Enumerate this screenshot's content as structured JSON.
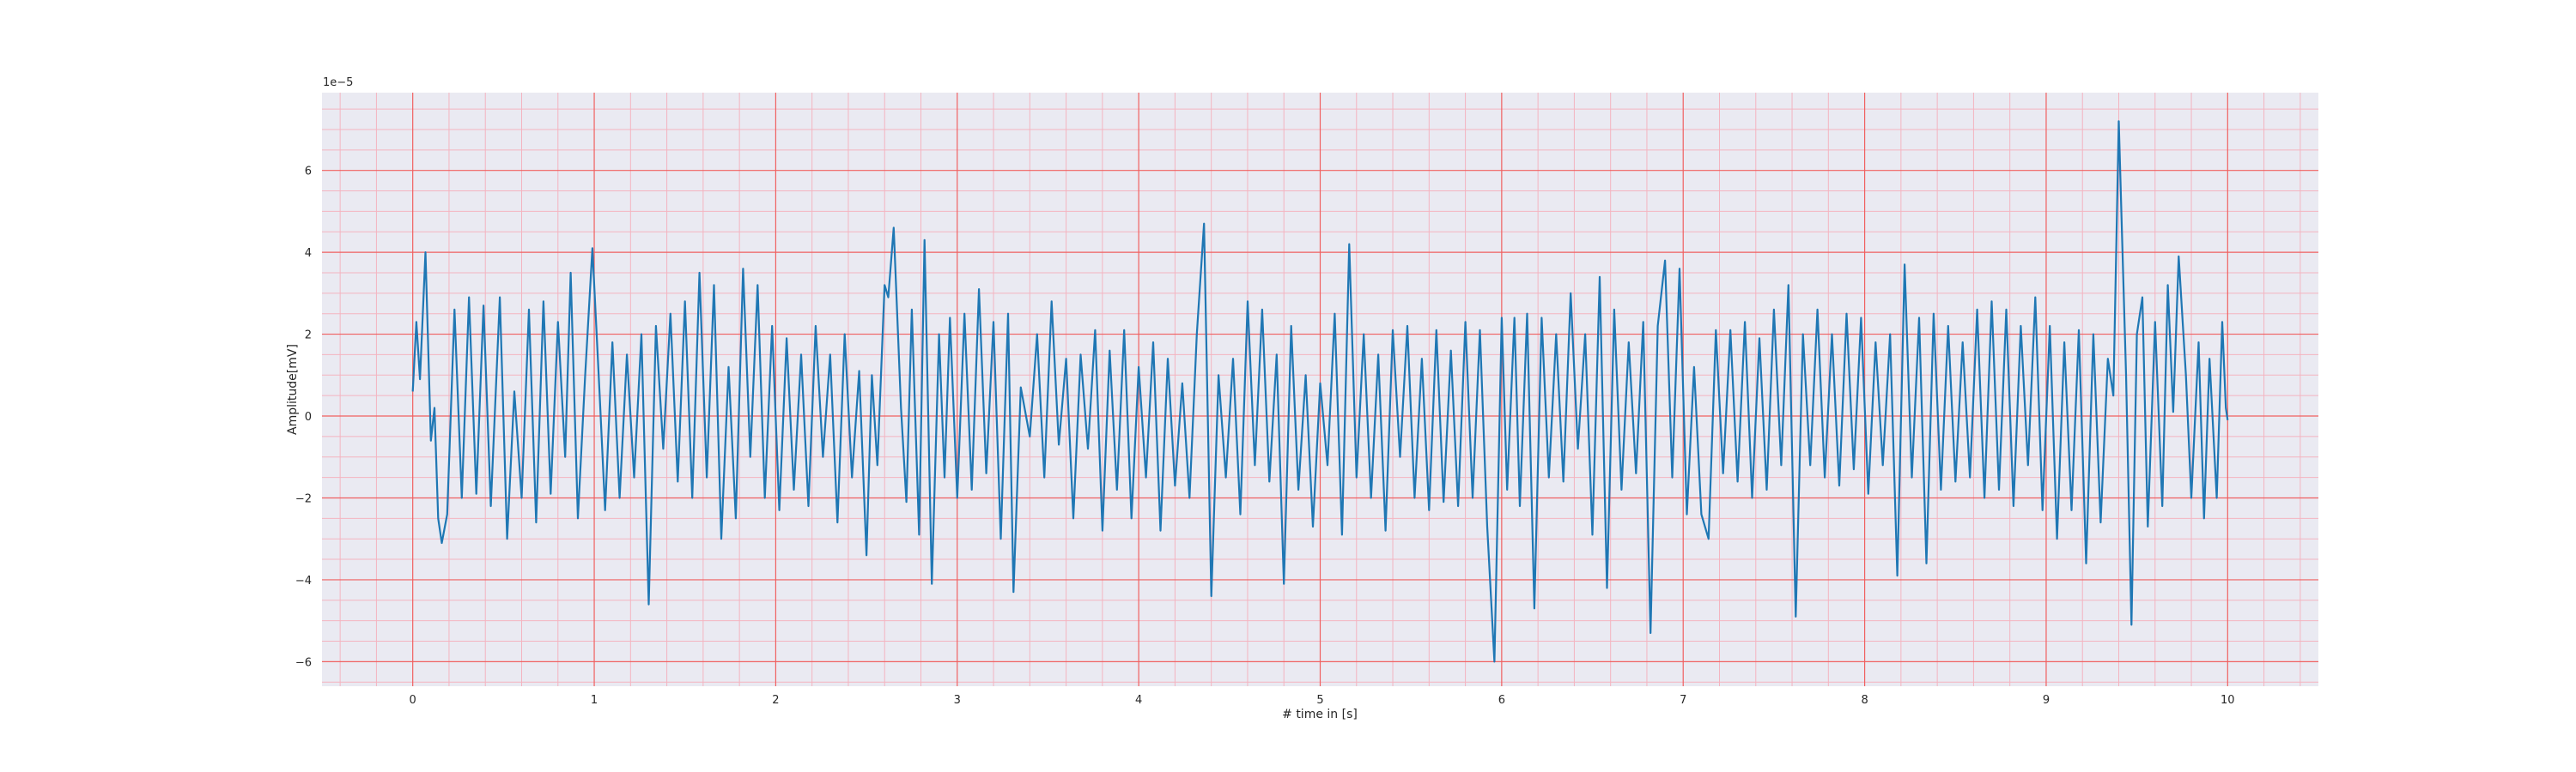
{
  "chart_data": {
    "type": "line",
    "title": "",
    "xlabel": "# time in [s]",
    "ylabel": "Amplitude[mV]",
    "y_offset_text": "1e−5",
    "xlim": [
      -0.5,
      10.5
    ],
    "ylim": [
      -6.6,
      7.9
    ],
    "x_ticks": [
      0,
      1,
      2,
      3,
      4,
      5,
      6,
      7,
      8,
      9,
      10
    ],
    "x_tick_labels": [
      "0",
      "1",
      "2",
      "3",
      "4",
      "5",
      "6",
      "7",
      "8",
      "9",
      "10"
    ],
    "y_ticks": [
      -6,
      -4,
      -2,
      0,
      2,
      4,
      6
    ],
    "y_tick_labels": [
      "−6",
      "−4",
      "−2",
      "0",
      "2",
      "4",
      "6"
    ],
    "grid": {
      "major": true,
      "minor": true
    },
    "colors": {
      "plot_background": "#eaeaf2",
      "major_grid": "#f06060",
      "minor_grid": "#f4b4c0",
      "line": "#1f77b4",
      "text": "#262626"
    },
    "series": [
      {
        "values_scale": "1e-5",
        "points": [
          [
            0.0,
            0.6
          ],
          [
            0.02,
            2.3
          ],
          [
            0.04,
            0.9
          ],
          [
            0.07,
            4.0
          ],
          [
            0.1,
            -0.6
          ],
          [
            0.12,
            0.2
          ],
          [
            0.14,
            -2.5
          ],
          [
            0.16,
            -3.1
          ],
          [
            0.19,
            -2.4
          ],
          [
            0.23,
            2.6
          ],
          [
            0.27,
            -2.0
          ],
          [
            0.31,
            2.9
          ],
          [
            0.35,
            -1.9
          ],
          [
            0.39,
            2.7
          ],
          [
            0.43,
            -2.2
          ],
          [
            0.48,
            2.9
          ],
          [
            0.52,
            -3.0
          ],
          [
            0.56,
            0.6
          ],
          [
            0.6,
            -2.0
          ],
          [
            0.64,
            2.6
          ],
          [
            0.68,
            -2.6
          ],
          [
            0.72,
            2.8
          ],
          [
            0.76,
            -1.9
          ],
          [
            0.8,
            2.3
          ],
          [
            0.84,
            -1.0
          ],
          [
            0.87,
            3.5
          ],
          [
            0.91,
            -2.5
          ],
          [
            0.95,
            1.0
          ],
          [
            0.99,
            4.1
          ],
          [
            1.03,
            0.5
          ],
          [
            1.06,
            -2.3
          ],
          [
            1.1,
            1.8
          ],
          [
            1.14,
            -2.0
          ],
          [
            1.18,
            1.5
          ],
          [
            1.22,
            -1.5
          ],
          [
            1.26,
            2.0
          ],
          [
            1.3,
            -4.6
          ],
          [
            1.34,
            2.2
          ],
          [
            1.38,
            -0.8
          ],
          [
            1.42,
            2.5
          ],
          [
            1.46,
            -1.6
          ],
          [
            1.5,
            2.8
          ],
          [
            1.54,
            -2.0
          ],
          [
            1.58,
            3.5
          ],
          [
            1.62,
            -1.5
          ],
          [
            1.66,
            3.2
          ],
          [
            1.7,
            -3.0
          ],
          [
            1.74,
            1.2
          ],
          [
            1.78,
            -2.5
          ],
          [
            1.82,
            3.6
          ],
          [
            1.86,
            -1.0
          ],
          [
            1.9,
            3.2
          ],
          [
            1.94,
            -2.0
          ],
          [
            1.98,
            2.2
          ],
          [
            2.02,
            -2.3
          ],
          [
            2.06,
            1.9
          ],
          [
            2.1,
            -1.8
          ],
          [
            2.14,
            1.5
          ],
          [
            2.18,
            -2.2
          ],
          [
            2.22,
            2.2
          ],
          [
            2.26,
            -1.0
          ],
          [
            2.3,
            1.5
          ],
          [
            2.34,
            -2.6
          ],
          [
            2.38,
            2.0
          ],
          [
            2.42,
            -1.5
          ],
          [
            2.46,
            1.1
          ],
          [
            2.5,
            -3.4
          ],
          [
            2.53,
            1.0
          ],
          [
            2.56,
            -1.2
          ],
          [
            2.6,
            3.2
          ],
          [
            2.62,
            2.9
          ],
          [
            2.65,
            4.6
          ],
          [
            2.69,
            0.2
          ],
          [
            2.72,
            -2.1
          ],
          [
            2.75,
            2.6
          ],
          [
            2.79,
            -2.9
          ],
          [
            2.82,
            4.3
          ],
          [
            2.86,
            -4.1
          ],
          [
            2.9,
            2.0
          ],
          [
            2.93,
            -1.5
          ],
          [
            2.96,
            2.4
          ],
          [
            3.0,
            -2.0
          ],
          [
            3.04,
            2.5
          ],
          [
            3.08,
            -1.8
          ],
          [
            3.12,
            3.1
          ],
          [
            3.16,
            -1.4
          ],
          [
            3.2,
            2.3
          ],
          [
            3.24,
            -3.0
          ],
          [
            3.28,
            2.5
          ],
          [
            3.31,
            -4.3
          ],
          [
            3.35,
            0.7
          ],
          [
            3.4,
            -0.5
          ],
          [
            3.44,
            2.0
          ],
          [
            3.48,
            -1.5
          ],
          [
            3.52,
            2.8
          ],
          [
            3.56,
            -0.7
          ],
          [
            3.6,
            1.4
          ],
          [
            3.64,
            -2.5
          ],
          [
            3.68,
            1.5
          ],
          [
            3.72,
            -0.8
          ],
          [
            3.76,
            2.1
          ],
          [
            3.8,
            -2.8
          ],
          [
            3.84,
            1.6
          ],
          [
            3.88,
            -1.8
          ],
          [
            3.92,
            2.1
          ],
          [
            3.96,
            -2.5
          ],
          [
            4.0,
            1.2
          ],
          [
            4.04,
            -1.5
          ],
          [
            4.08,
            1.8
          ],
          [
            4.12,
            -2.8
          ],
          [
            4.16,
            1.4
          ],
          [
            4.2,
            -1.7
          ],
          [
            4.24,
            0.8
          ],
          [
            4.28,
            -2.0
          ],
          [
            4.32,
            2.0
          ],
          [
            4.36,
            4.7
          ],
          [
            4.4,
            -4.4
          ],
          [
            4.44,
            1.0
          ],
          [
            4.48,
            -1.5
          ],
          [
            4.52,
            1.4
          ],
          [
            4.56,
            -2.4
          ],
          [
            4.6,
            2.8
          ],
          [
            4.64,
            -1.2
          ],
          [
            4.68,
            2.6
          ],
          [
            4.72,
            -1.6
          ],
          [
            4.76,
            1.5
          ],
          [
            4.8,
            -4.1
          ],
          [
            4.84,
            2.2
          ],
          [
            4.88,
            -1.8
          ],
          [
            4.92,
            1.0
          ],
          [
            4.96,
            -2.7
          ],
          [
            5.0,
            0.8
          ],
          [
            5.04,
            -1.2
          ],
          [
            5.08,
            2.5
          ],
          [
            5.12,
            -2.9
          ],
          [
            5.16,
            4.2
          ],
          [
            5.2,
            -1.5
          ],
          [
            5.24,
            2.0
          ],
          [
            5.28,
            -2.0
          ],
          [
            5.32,
            1.5
          ],
          [
            5.36,
            -2.8
          ],
          [
            5.4,
            2.1
          ],
          [
            5.44,
            -1.0
          ],
          [
            5.48,
            2.2
          ],
          [
            5.52,
            -2.0
          ],
          [
            5.56,
            1.4
          ],
          [
            5.6,
            -2.3
          ],
          [
            5.64,
            2.1
          ],
          [
            5.68,
            -2.1
          ],
          [
            5.72,
            1.6
          ],
          [
            5.76,
            -2.2
          ],
          [
            5.8,
            2.3
          ],
          [
            5.84,
            -2.0
          ],
          [
            5.88,
            2.1
          ],
          [
            5.92,
            -2.7
          ],
          [
            5.96,
            -6.0
          ],
          [
            6.0,
            2.4
          ],
          [
            6.03,
            -1.8
          ],
          [
            6.07,
            2.4
          ],
          [
            6.1,
            -2.2
          ],
          [
            6.14,
            2.5
          ],
          [
            6.18,
            -4.7
          ],
          [
            6.22,
            2.4
          ],
          [
            6.26,
            -1.5
          ],
          [
            6.3,
            2.0
          ],
          [
            6.34,
            -1.6
          ],
          [
            6.38,
            3.0
          ],
          [
            6.42,
            -0.8
          ],
          [
            6.46,
            2.0
          ],
          [
            6.5,
            -2.9
          ],
          [
            6.54,
            3.4
          ],
          [
            6.58,
            -4.2
          ],
          [
            6.62,
            2.6
          ],
          [
            6.66,
            -1.8
          ],
          [
            6.7,
            1.8
          ],
          [
            6.74,
            -1.4
          ],
          [
            6.78,
            2.3
          ],
          [
            6.82,
            -5.3
          ],
          [
            6.86,
            2.2
          ],
          [
            6.9,
            3.8
          ],
          [
            6.94,
            -1.5
          ],
          [
            6.98,
            3.6
          ],
          [
            7.02,
            -2.4
          ],
          [
            7.06,
            1.2
          ],
          [
            7.1,
            -2.4
          ],
          [
            7.14,
            -3.0
          ],
          [
            7.18,
            2.1
          ],
          [
            7.22,
            -1.4
          ],
          [
            7.26,
            2.1
          ],
          [
            7.3,
            -1.6
          ],
          [
            7.34,
            2.3
          ],
          [
            7.38,
            -2.0
          ],
          [
            7.42,
            1.9
          ],
          [
            7.46,
            -1.8
          ],
          [
            7.5,
            2.6
          ],
          [
            7.54,
            -1.2
          ],
          [
            7.58,
            3.2
          ],
          [
            7.62,
            -4.9
          ],
          [
            7.66,
            2.0
          ],
          [
            7.7,
            -1.2
          ],
          [
            7.74,
            2.6
          ],
          [
            7.78,
            -1.5
          ],
          [
            7.82,
            2.0
          ],
          [
            7.86,
            -1.7
          ],
          [
            7.9,
            2.5
          ],
          [
            7.94,
            -1.3
          ],
          [
            7.98,
            2.4
          ],
          [
            8.02,
            -1.9
          ],
          [
            8.06,
            1.8
          ],
          [
            8.1,
            -1.2
          ],
          [
            8.14,
            2.0
          ],
          [
            8.18,
            -3.9
          ],
          [
            8.22,
            3.7
          ],
          [
            8.26,
            -1.5
          ],
          [
            8.3,
            2.4
          ],
          [
            8.34,
            -3.6
          ],
          [
            8.38,
            2.5
          ],
          [
            8.42,
            -1.8
          ],
          [
            8.46,
            2.2
          ],
          [
            8.5,
            -1.6
          ],
          [
            8.54,
            1.8
          ],
          [
            8.58,
            -1.5
          ],
          [
            8.62,
            2.6
          ],
          [
            8.66,
            -2.0
          ],
          [
            8.7,
            2.8
          ],
          [
            8.74,
            -1.8
          ],
          [
            8.78,
            2.6
          ],
          [
            8.82,
            -2.2
          ],
          [
            8.86,
            2.2
          ],
          [
            8.9,
            -1.2
          ],
          [
            8.94,
            2.9
          ],
          [
            8.98,
            -2.3
          ],
          [
            9.02,
            2.2
          ],
          [
            9.06,
            -3.0
          ],
          [
            9.1,
            1.8
          ],
          [
            9.14,
            -2.3
          ],
          [
            9.18,
            2.1
          ],
          [
            9.22,
            -3.6
          ],
          [
            9.26,
            2.0
          ],
          [
            9.3,
            -2.6
          ],
          [
            9.34,
            1.4
          ],
          [
            9.37,
            0.5
          ],
          [
            9.4,
            7.2
          ],
          [
            9.44,
            1.0
          ],
          [
            9.47,
            -5.1
          ],
          [
            9.5,
            2.0
          ],
          [
            9.53,
            2.9
          ],
          [
            9.56,
            -2.7
          ],
          [
            9.6,
            2.3
          ],
          [
            9.64,
            -2.2
          ],
          [
            9.67,
            3.2
          ],
          [
            9.7,
            0.1
          ],
          [
            9.73,
            3.9
          ],
          [
            9.77,
            1.0
          ],
          [
            9.8,
            -2.0
          ],
          [
            9.84,
            1.8
          ],
          [
            9.87,
            -2.5
          ],
          [
            9.9,
            1.4
          ],
          [
            9.94,
            -2.0
          ],
          [
            9.97,
            2.3
          ],
          [
            9.99,
            0.2
          ],
          [
            10.0,
            -0.1
          ]
        ]
      }
    ]
  }
}
